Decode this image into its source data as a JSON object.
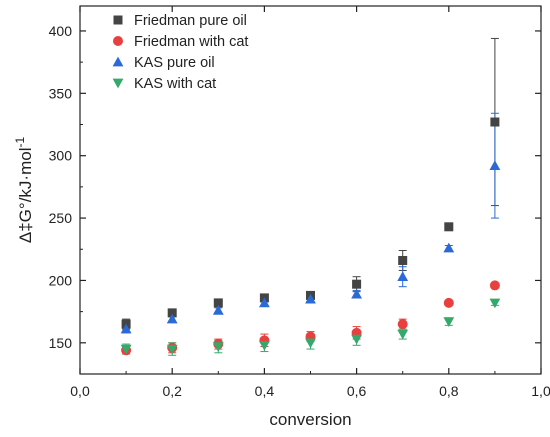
{
  "chart_data": {
    "type": "scatter",
    "xlabel": "conversion",
    "ylabel": "Δ‡G°/kJ·mol",
    "ylabel_superscript": "-1",
    "xlim": [
      0.0,
      1.0
    ],
    "ylim": [
      125,
      420
    ],
    "x_ticks": [
      0.0,
      0.2,
      0.4,
      0.6,
      0.8,
      1.0
    ],
    "x_tick_labels": [
      "0,0",
      "0,2",
      "0,4",
      "0,6",
      "0,8",
      "1,0"
    ],
    "y_ticks": [
      150,
      200,
      250,
      300,
      350,
      400
    ],
    "y_tick_labels": [
      "150",
      "200",
      "250",
      "300",
      "350",
      "400"
    ],
    "grid": false,
    "legend_position": "top-left",
    "series": [
      {
        "name": "Friedman pure oil",
        "marker": "square",
        "color": "#444444",
        "x": [
          0.1,
          0.2,
          0.3,
          0.4,
          0.5,
          0.6,
          0.7,
          0.8,
          0.9
        ],
        "y": [
          165,
          174,
          182,
          186,
          188,
          197,
          216,
          243,
          327
        ],
        "err": [
          4,
          2,
          2,
          2,
          3,
          6,
          8,
          2,
          67
        ]
      },
      {
        "name": "Friedman with cat",
        "marker": "circle",
        "color": "#e8403e",
        "x": [
          0.1,
          0.2,
          0.3,
          0.4,
          0.5,
          0.6,
          0.7,
          0.8,
          0.9
        ],
        "y": [
          144,
          146,
          149,
          152,
          155,
          158,
          165,
          182,
          196
        ],
        "err": [
          3,
          4,
          4,
          5,
          4,
          5,
          4,
          2,
          2
        ]
      },
      {
        "name": "KAS pure oil",
        "marker": "triangle-up",
        "color": "#2a6ad6",
        "x": [
          0.1,
          0.2,
          0.3,
          0.4,
          0.5,
          0.6,
          0.7,
          0.8,
          0.9
        ],
        "y": [
          161,
          169,
          176,
          182,
          185,
          189,
          203,
          226,
          292
        ],
        "err": [
          3,
          2,
          2,
          2,
          2,
          3,
          8,
          2,
          42
        ]
      },
      {
        "name": "KAS with cat",
        "marker": "triangle-down",
        "color": "#35a86c",
        "x": [
          0.1,
          0.2,
          0.3,
          0.4,
          0.5,
          0.6,
          0.7,
          0.8,
          0.9
        ],
        "y": [
          145,
          145,
          147,
          148,
          150,
          153,
          157,
          167,
          182
        ],
        "err": [
          4,
          5,
          5,
          5,
          5,
          5,
          4,
          3,
          2
        ]
      }
    ]
  }
}
